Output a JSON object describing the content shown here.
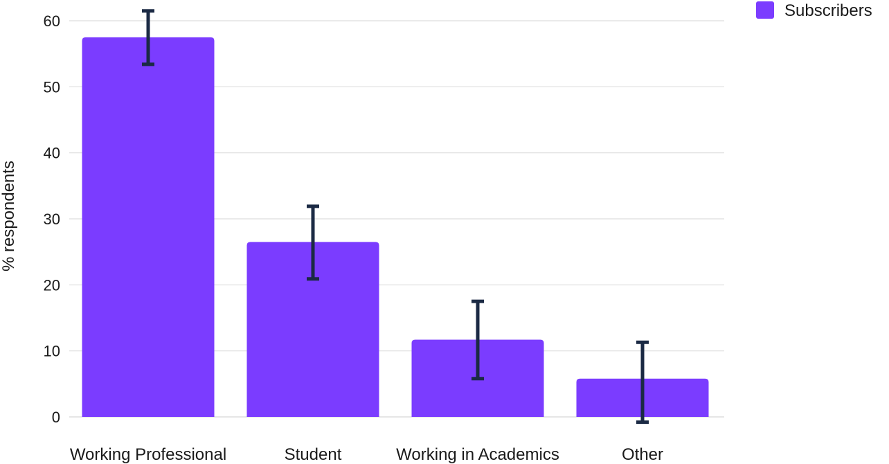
{
  "chart_data": {
    "type": "bar",
    "categories": [
      "Working Professional",
      "Student",
      "Working in Academics",
      "Other"
    ],
    "series": [
      {
        "name": "Subscribers",
        "values": [
          57.5,
          26.5,
          11.7,
          5.8
        ],
        "error_low": [
          53.4,
          20.9,
          5.8,
          -0.8
        ],
        "error_high": [
          61.5,
          31.9,
          17.5,
          11.3
        ]
      }
    ],
    "ylabel": "% respondents",
    "xlabel": "",
    "ylim": [
      0,
      60
    ],
    "yticks": [
      "0",
      "10",
      "20",
      "30",
      "40",
      "50",
      "60"
    ],
    "grid": true,
    "legend_position": "top-right",
    "colors": {
      "bar": "#7b3cff",
      "error_bar": "#1b2a44",
      "grid": "#dddddd",
      "text": "#1a1a1a"
    }
  }
}
